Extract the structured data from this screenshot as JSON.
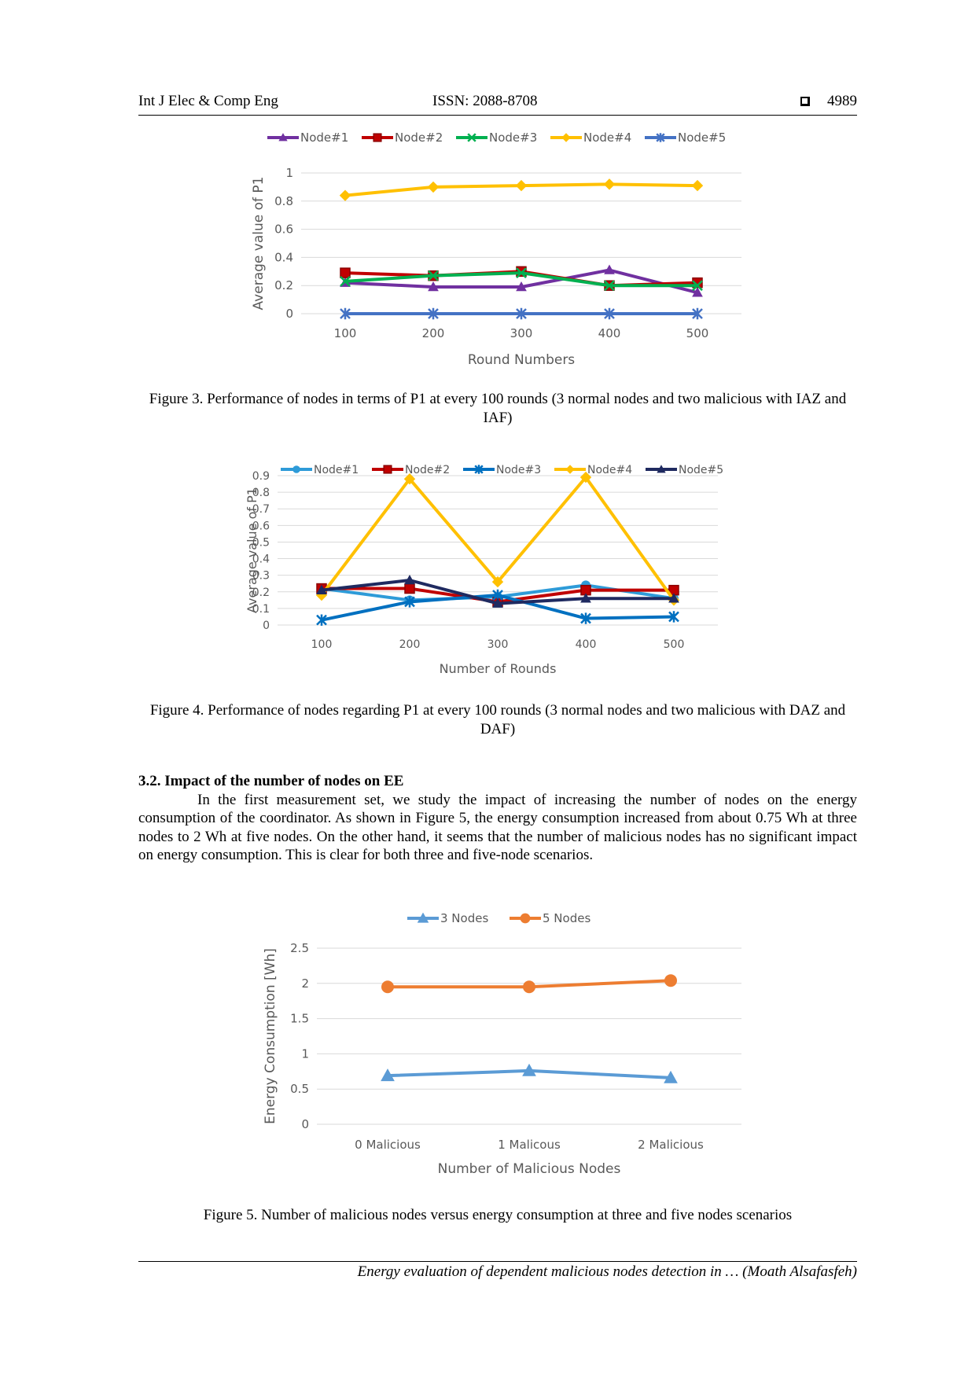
{
  "header": {
    "journal": "Int J Elec & Comp Eng",
    "issn": "ISSN: 2088-8708",
    "page": "4989",
    "square_icon": "square-icon"
  },
  "figure3": {
    "caption": "Figure 3. Performance of nodes in terms of P1 at every 100 rounds (3 normal nodes and two malicious with IAZ and IAF)",
    "chart_data": {
      "type": "line",
      "x": [
        "100",
        "200",
        "300",
        "400",
        "500"
      ],
      "xlabel": "Round Numbers",
      "ylabel": "Average value of P1",
      "ylim": [
        0,
        1
      ],
      "yticks": [
        "0",
        "0.2",
        "0.4",
        "0.6",
        "0.8",
        "1"
      ],
      "legend_position": "top",
      "grid": true,
      "series": [
        {
          "name": "Node#1",
          "color": "#7030A0",
          "marker": "triangle",
          "values": [
            0.22,
            0.19,
            0.19,
            0.31,
            0.15
          ]
        },
        {
          "name": "Node#2",
          "color": "#C00000",
          "marker": "square",
          "values": [
            0.29,
            0.27,
            0.3,
            0.2,
            0.22
          ]
        },
        {
          "name": "Node#3",
          "color": "#00B050",
          "marker": "x",
          "values": [
            0.23,
            0.27,
            0.29,
            0.2,
            0.2
          ]
        },
        {
          "name": "Node#4",
          "color": "#FFC000",
          "marker": "diamond",
          "values": [
            0.84,
            0.9,
            0.91,
            0.92,
            0.91
          ]
        },
        {
          "name": "Node#5",
          "color": "#4472C4",
          "marker": "star",
          "values": [
            0.0,
            0.0,
            0.0,
            0.0,
            0.0
          ]
        }
      ]
    }
  },
  "figure4": {
    "caption": "Figure 4. Performance of nodes regarding P1 at every 100 rounds (3 normal nodes and two malicious with DAZ and DAF)",
    "chart_data": {
      "type": "line",
      "x": [
        "100",
        "200",
        "300",
        "400",
        "500"
      ],
      "xlabel": "Number of Rounds",
      "ylabel": "Average value of P1",
      "ylim": [
        0,
        0.9
      ],
      "yticks": [
        "0",
        "0.1",
        "0.2",
        "0.3",
        "0.4",
        "0.5",
        "0.6",
        "0.7",
        "0.8",
        "0.9"
      ],
      "legend_position": "top",
      "grid": true,
      "series": [
        {
          "name": "Node#1",
          "color": "#2E9BD8",
          "marker": "circle",
          "values": [
            0.22,
            0.15,
            0.17,
            0.24,
            0.16
          ]
        },
        {
          "name": "Node#2",
          "color": "#C00000",
          "marker": "square",
          "values": [
            0.22,
            0.22,
            0.14,
            0.21,
            0.21
          ]
        },
        {
          "name": "Node#3",
          "color": "#0070C0",
          "marker": "star",
          "values": [
            0.03,
            0.14,
            0.18,
            0.04,
            0.05
          ]
        },
        {
          "name": "Node#4",
          "color": "#FFC000",
          "marker": "diamond",
          "values": [
            0.18,
            0.88,
            0.26,
            0.89,
            0.15
          ]
        },
        {
          "name": "Node#5",
          "color": "#1F2A60",
          "marker": "triangle",
          "values": [
            0.21,
            0.27,
            0.13,
            0.16,
            0.16
          ]
        }
      ]
    }
  },
  "section": {
    "heading": "3.2.   Impact of the number of nodes on EE",
    "paragraph": "In the first measurement set, we study the impact of increasing the number of nodes on the energy consumption of the coordinator. As shown in Figure 5, the energy consumption increased from about 0.75 Wh at three nodes to 2 Wh at five nodes. On the other hand, it seems that the number of malicious nodes has no significant impact on energy consumption. This is clear for both three and five-node scenarios."
  },
  "figure5": {
    "caption": "Figure 5. Number of malicious nodes versus energy consumption at three and five nodes scenarios",
    "chart_data": {
      "type": "line",
      "x": [
        "0 Malicious",
        "1 Malicous",
        "2 Malicious"
      ],
      "xlabel": "Number of Malicious Nodes",
      "ylabel": "Energy Consumption [Wh]",
      "ylim": [
        0,
        2.5
      ],
      "yticks": [
        "0",
        "0.5",
        "1",
        "1.5",
        "2",
        "2.5"
      ],
      "legend_position": "top",
      "grid": true,
      "series": [
        {
          "name": "3 Nodes",
          "color": "#5B9BD5",
          "marker": "triangle",
          "values": [
            0.69,
            0.76,
            0.66
          ]
        },
        {
          "name": "5 Nodes",
          "color": "#ED7D31",
          "marker": "circle",
          "values": [
            1.95,
            1.95,
            2.04
          ]
        }
      ]
    }
  },
  "footer": {
    "text": "Energy evaluation of dependent malicious nodes detection in … (Moath Alsafasfeh)"
  }
}
